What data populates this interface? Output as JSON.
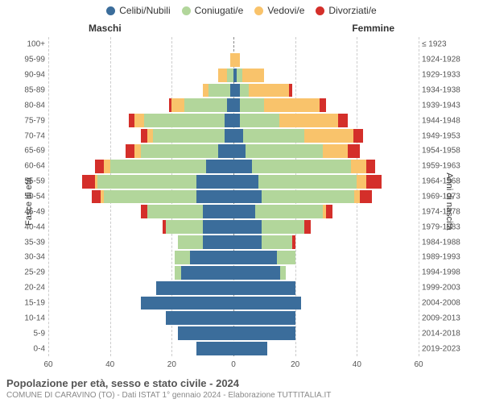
{
  "chart": {
    "type": "population-pyramid",
    "title": "Popolazione per età, sesso e stato civile - 2024",
    "subtitle": "COMUNE DI CARAVINO (TO) - Dati ISTAT 1° gennaio 2024 - Elaborazione TUTTITALIA.IT",
    "gender_label_m": "Maschi",
    "gender_label_f": "Femmine",
    "axis_left": "Fasce di età",
    "axis_right": "Anni di nascita",
    "x_max": 60,
    "x_ticks": [
      60,
      40,
      20,
      0,
      20,
      40,
      60
    ],
    "colors": {
      "celibi": "#3b6d9b",
      "coniugati": "#b2d69b",
      "vedovi": "#f9c36b",
      "divorziati": "#d42f2a",
      "grid": "#cccccc",
      "center": "#888888",
      "bg": "#ffffff"
    },
    "legend": [
      {
        "label": "Celibi/Nubili",
        "color_key": "celibi"
      },
      {
        "label": "Coniugati/e",
        "color_key": "coniugati"
      },
      {
        "label": "Vedovi/e",
        "color_key": "vedovi"
      },
      {
        "label": "Divorziati/e",
        "color_key": "divorziati"
      }
    ],
    "age_groups": [
      {
        "age": "100+",
        "birth": "≤ 1923",
        "m": [
          0,
          0,
          0,
          0
        ],
        "f": [
          0,
          0,
          0,
          0
        ]
      },
      {
        "age": "95-99",
        "birth": "1924-1928",
        "m": [
          0,
          0,
          1,
          0
        ],
        "f": [
          0,
          0,
          2,
          0
        ]
      },
      {
        "age": "90-94",
        "birth": "1929-1933",
        "m": [
          0,
          2,
          3,
          0
        ],
        "f": [
          1,
          2,
          7,
          0
        ]
      },
      {
        "age": "85-89",
        "birth": "1934-1938",
        "m": [
          1,
          7,
          2,
          0
        ],
        "f": [
          2,
          3,
          13,
          1
        ]
      },
      {
        "age": "80-84",
        "birth": "1939-1943",
        "m": [
          2,
          14,
          4,
          1
        ],
        "f": [
          2,
          8,
          18,
          2
        ]
      },
      {
        "age": "75-79",
        "birth": "1944-1948",
        "m": [
          3,
          26,
          3,
          2
        ],
        "f": [
          2,
          13,
          19,
          3
        ]
      },
      {
        "age": "70-74",
        "birth": "1949-1953",
        "m": [
          3,
          23,
          2,
          2
        ],
        "f": [
          3,
          20,
          16,
          3
        ]
      },
      {
        "age": "65-69",
        "birth": "1954-1958",
        "m": [
          5,
          25,
          2,
          3
        ],
        "f": [
          4,
          25,
          8,
          4
        ]
      },
      {
        "age": "60-64",
        "birth": "1959-1963",
        "m": [
          9,
          31,
          2,
          3
        ],
        "f": [
          6,
          32,
          5,
          3
        ]
      },
      {
        "age": "55-59",
        "birth": "1964-1968",
        "m": [
          12,
          32,
          1,
          4
        ],
        "f": [
          8,
          32,
          3,
          5
        ]
      },
      {
        "age": "50-54",
        "birth": "1969-1973",
        "m": [
          12,
          30,
          1,
          3
        ],
        "f": [
          9,
          30,
          2,
          4
        ]
      },
      {
        "age": "45-49",
        "birth": "1974-1978",
        "m": [
          10,
          18,
          0,
          2
        ],
        "f": [
          7,
          22,
          1,
          2
        ]
      },
      {
        "age": "40-44",
        "birth": "1979-1983",
        "m": [
          10,
          12,
          0,
          1
        ],
        "f": [
          9,
          14,
          0,
          2
        ]
      },
      {
        "age": "35-39",
        "birth": "1984-1988",
        "m": [
          10,
          8,
          0,
          0
        ],
        "f": [
          9,
          10,
          0,
          1
        ]
      },
      {
        "age": "30-34",
        "birth": "1989-1993",
        "m": [
          14,
          5,
          0,
          0
        ],
        "f": [
          14,
          6,
          0,
          0
        ]
      },
      {
        "age": "25-29",
        "birth": "1994-1998",
        "m": [
          17,
          2,
          0,
          0
        ],
        "f": [
          15,
          2,
          0,
          0
        ]
      },
      {
        "age": "20-24",
        "birth": "1999-2003",
        "m": [
          25,
          0,
          0,
          0
        ],
        "f": [
          20,
          0,
          0,
          0
        ]
      },
      {
        "age": "15-19",
        "birth": "2004-2008",
        "m": [
          30,
          0,
          0,
          0
        ],
        "f": [
          22,
          0,
          0,
          0
        ]
      },
      {
        "age": "10-14",
        "birth": "2009-2013",
        "m": [
          22,
          0,
          0,
          0
        ],
        "f": [
          20,
          0,
          0,
          0
        ]
      },
      {
        "age": "5-9",
        "birth": "2014-2018",
        "m": [
          18,
          0,
          0,
          0
        ],
        "f": [
          20,
          0,
          0,
          0
        ]
      },
      {
        "age": "0-4",
        "birth": "2019-2023",
        "m": [
          12,
          0,
          0,
          0
        ],
        "f": [
          11,
          0,
          0,
          0
        ]
      }
    ]
  }
}
